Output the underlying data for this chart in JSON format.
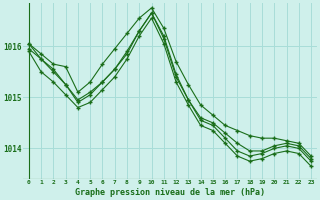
{
  "title": "Graphe pression niveau de la mer (hPa)",
  "background_color": "#cff0eb",
  "grid_color": "#a8ddd8",
  "line_color": "#1a6e1a",
  "x_ticks": [
    0,
    1,
    2,
    3,
    4,
    5,
    6,
    7,
    8,
    9,
    10,
    11,
    12,
    13,
    14,
    15,
    16,
    17,
    18,
    19,
    20,
    21,
    22,
    23
  ],
  "y_ticks": [
    1014,
    1015,
    1016
  ],
  "ylim": [
    1013.4,
    1016.85
  ],
  "xlim": [
    -0.5,
    23.5
  ],
  "series": [
    [
      1016.05,
      1015.85,
      1015.65,
      1015.6,
      1015.1,
      1015.3,
      1015.65,
      1015.95,
      1016.25,
      1016.55,
      1016.75,
      1016.35,
      1015.7,
      1015.25,
      1014.85,
      1014.65,
      1014.45,
      1014.35,
      1014.25,
      1014.2,
      1014.2,
      1014.15,
      1014.1,
      1013.85
    ],
    [
      1016.05,
      1015.75,
      1015.55,
      1015.25,
      1014.9,
      1015.05,
      1015.3,
      1015.55,
      1015.85,
      1016.3,
      1016.65,
      1016.2,
      1015.45,
      1014.95,
      1014.6,
      1014.5,
      1014.3,
      1014.1,
      1013.95,
      1013.95,
      1014.05,
      1014.1,
      1014.05,
      1013.8
    ],
    [
      1015.95,
      1015.75,
      1015.5,
      1015.25,
      1014.95,
      1015.1,
      1015.3,
      1015.55,
      1015.9,
      1016.3,
      1016.65,
      1016.15,
      1015.4,
      1014.95,
      1014.55,
      1014.45,
      1014.2,
      1013.95,
      1013.85,
      1013.9,
      1014.0,
      1014.05,
      1014.0,
      1013.75
    ],
    [
      1015.9,
      1015.5,
      1015.3,
      1015.05,
      1014.8,
      1014.9,
      1015.15,
      1015.4,
      1015.75,
      1016.2,
      1016.55,
      1016.05,
      1015.3,
      1014.85,
      1014.45,
      1014.35,
      1014.1,
      1013.85,
      1013.75,
      1013.8,
      1013.9,
      1013.95,
      1013.9,
      1013.65
    ]
  ]
}
